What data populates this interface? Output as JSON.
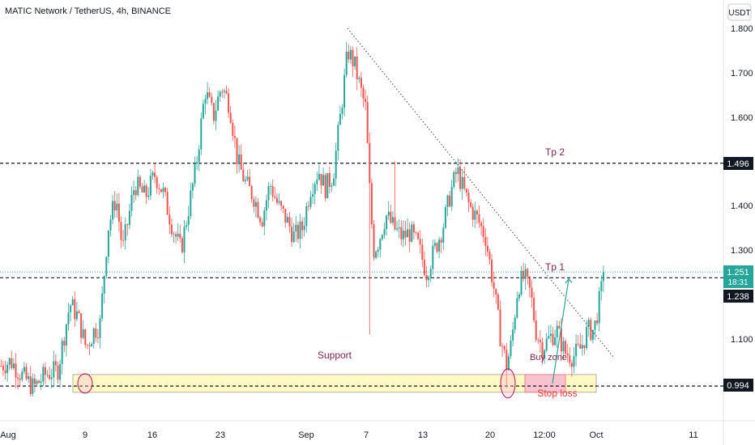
{
  "header": {
    "title": "MATIC Network / TetherUS, 4h, BINANCE",
    "currency_button": "USDT"
  },
  "price_axis": {
    "ticks": [
      "1.800",
      "1.700",
      "1.600",
      "1.400",
      "1.300",
      "1.100"
    ],
    "badge_tp2": "1.496",
    "badge_last": "1.251",
    "badge_countdown": "18:31",
    "badge_tp1": "1.238",
    "badge_stop": "0.994"
  },
  "time_axis": {
    "labels": [
      "Aug",
      "9",
      "16",
      "23",
      "Sep",
      "7",
      "13",
      "20",
      "12:00",
      "Oct",
      "11"
    ]
  },
  "annotations": {
    "tp2": "Tp 2",
    "tp1": "Tp 1",
    "support": "Support",
    "buy_zone": "Buy zone",
    "stop_loss": "Stop loss"
  },
  "colors": {
    "up": "#26a69a",
    "down": "#ef5350",
    "support_fill": "#fff9c4",
    "buy_zone_fill": "#f8bbd0",
    "label_color": "#7b1f4a",
    "stop_color": "#e53935",
    "last_price": "#26a69a",
    "badge_dark": "#131722"
  },
  "chart_data": {
    "type": "candlestick",
    "symbol": "MATIC Network / TetherUS",
    "interval": "4h",
    "exchange": "BINANCE",
    "ylim": [
      0.93,
      1.83
    ],
    "path_points": [
      [
        0,
        1.04
      ],
      [
        12,
        1.05
      ],
      [
        25,
        1.02
      ],
      [
        40,
        0.99
      ],
      [
        55,
        1.02
      ],
      [
        70,
        1.03
      ],
      [
        85,
        1.18
      ],
      [
        95,
        1.15
      ],
      [
        105,
        1.08
      ],
      [
        115,
        1.12
      ],
      [
        122,
        1.13
      ],
      [
        132,
        1.35
      ],
      [
        142,
        1.42
      ],
      [
        150,
        1.3
      ],
      [
        165,
        1.45
      ],
      [
        178,
        1.42
      ],
      [
        190,
        1.47
      ],
      [
        200,
        1.43
      ],
      [
        212,
        1.35
      ],
      [
        222,
        1.3
      ],
      [
        232,
        1.4
      ],
      [
        240,
        1.48
      ],
      [
        252,
        1.66
      ],
      [
        262,
        1.6
      ],
      [
        272,
        1.67
      ],
      [
        282,
        1.63
      ],
      [
        292,
        1.5
      ],
      [
        302,
        1.45
      ],
      [
        312,
        1.42
      ],
      [
        322,
        1.37
      ],
      [
        332,
        1.45
      ],
      [
        342,
        1.4
      ],
      [
        352,
        1.37
      ],
      [
        362,
        1.33
      ],
      [
        372,
        1.35
      ],
      [
        382,
        1.44
      ],
      [
        392,
        1.48
      ],
      [
        400,
        1.44
      ],
      [
        410,
        1.47
      ],
      [
        420,
        1.62
      ],
      [
        428,
        1.75
      ],
      [
        436,
        1.72
      ],
      [
        444,
        1.66
      ],
      [
        450,
        1.62
      ],
      [
        456,
        1.4
      ],
      [
        460,
        1.3
      ],
      [
        466,
        1.32
      ],
      [
        475,
        1.38
      ],
      [
        485,
        1.35
      ],
      [
        495,
        1.33
      ],
      [
        505,
        1.34
      ],
      [
        515,
        1.31
      ],
      [
        525,
        1.25
      ],
      [
        535,
        1.3
      ],
      [
        545,
        1.35
      ],
      [
        555,
        1.43
      ],
      [
        563,
        1.48
      ],
      [
        570,
        1.44
      ],
      [
        578,
        1.4
      ],
      [
        588,
        1.37
      ],
      [
        598,
        1.33
      ],
      [
        608,
        1.22
      ],
      [
        616,
        1.11
      ],
      [
        624,
        1.04
      ],
      [
        630,
        1.09
      ],
      [
        638,
        1.22
      ],
      [
        646,
        1.24
      ],
      [
        654,
        1.2
      ],
      [
        660,
        1.12
      ],
      [
        668,
        1.08
      ],
      [
        676,
        1.1
      ],
      [
        686,
        1.12
      ],
      [
        696,
        1.07
      ],
      [
        706,
        1.06
      ],
      [
        716,
        1.08
      ],
      [
        724,
        1.12
      ],
      [
        732,
        1.12
      ],
      [
        740,
        1.2
      ],
      [
        745,
        1.25
      ]
    ],
    "levels": {
      "tp2": 1.496,
      "tp1": 1.238,
      "last": 1.251,
      "stop": 0.994
    },
    "support_zone": [
      0.98,
      1.02
    ],
    "buy_zone": [
      0.98,
      1.02
    ],
    "trendline": [
      [
        429,
        1.8
      ],
      [
        757,
        1.06
      ]
    ]
  }
}
